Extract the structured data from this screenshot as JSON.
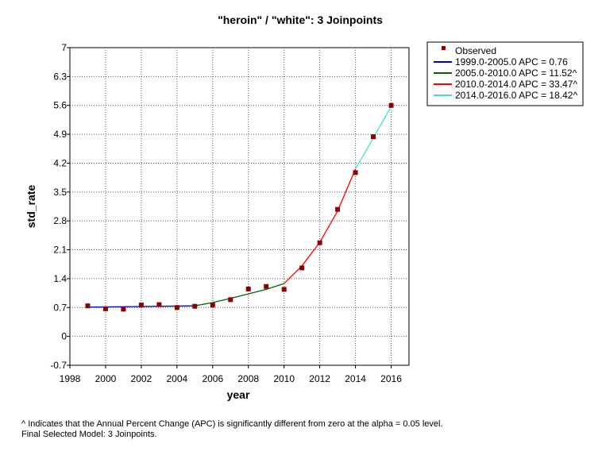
{
  "chart_data": {
    "type": "line",
    "title": "\"heroin\" / \"white\": 3 Joinpoints",
    "xlabel": "year",
    "ylabel": "std_rate",
    "xlim": [
      1998,
      2017
    ],
    "ylim": [
      -0.7,
      7
    ],
    "x_ticks": [
      "1998",
      "2000",
      "2002",
      "2004",
      "2006",
      "2008",
      "2010",
      "2012",
      "2014",
      "2016"
    ],
    "x_tick_values": [
      1998,
      2000,
      2002,
      2004,
      2006,
      2008,
      2010,
      2012,
      2014,
      2016
    ],
    "y_ticks": [
      "7",
      "6.3",
      "5.6",
      "4.9",
      "4.2",
      "3.5",
      "2.8",
      "2.1",
      "1.4",
      "0.7",
      "0",
      "-0.7"
    ],
    "y_tick_values": [
      7,
      6.3,
      5.6,
      4.9,
      4.2,
      3.5,
      2.8,
      2.1,
      1.4,
      0.7,
      0,
      -0.7
    ],
    "grid": true,
    "legend_position": "right",
    "observed": {
      "name": "Observed",
      "color": "#8b0000",
      "x": [
        1999,
        2000,
        2001,
        2002,
        2003,
        2004,
        2005,
        2006,
        2007,
        2008,
        2009,
        2010,
        2011,
        2012,
        2013,
        2014,
        2015,
        2016
      ],
      "y": [
        0.74,
        0.67,
        0.66,
        0.76,
        0.77,
        0.7,
        0.73,
        0.76,
        0.89,
        1.15,
        1.21,
        1.14,
        1.66,
        2.27,
        3.08,
        3.97,
        4.84,
        5.6
      ]
    },
    "series": [
      {
        "name": "1999.0-2005.0 APC  =  0.76",
        "color": "#0000cd",
        "x": [
          1999,
          2005
        ],
        "y": [
          0.71,
          0.74
        ]
      },
      {
        "name": "2005.0-2010.0 APC  = 11.52^",
        "color": "#006400",
        "x": [
          2005,
          2006,
          2007,
          2008,
          2009,
          2010
        ],
        "y": [
          0.74,
          0.82,
          0.92,
          1.03,
          1.14,
          1.28
        ]
      },
      {
        "name": "2010.0-2014.0 APC  = 33.47^",
        "color": "#ff0000",
        "x": [
          2010,
          2011,
          2012,
          2013,
          2014
        ],
        "y": [
          1.28,
          1.71,
          2.28,
          3.04,
          4.06
        ]
      },
      {
        "name": "2014.0-2016.0 APC  = 18.42^",
        "color": "#40e0d0",
        "x": [
          2014,
          2015,
          2016
        ],
        "y": [
          4.06,
          4.81,
          5.58
        ]
      }
    ]
  },
  "footnotes": {
    "line1": "^ Indicates that the Annual Percent Change (APC) is significantly different from zero at the alpha = 0.05 level.",
    "line2": "Final Selected Model: 3 Joinpoints."
  }
}
